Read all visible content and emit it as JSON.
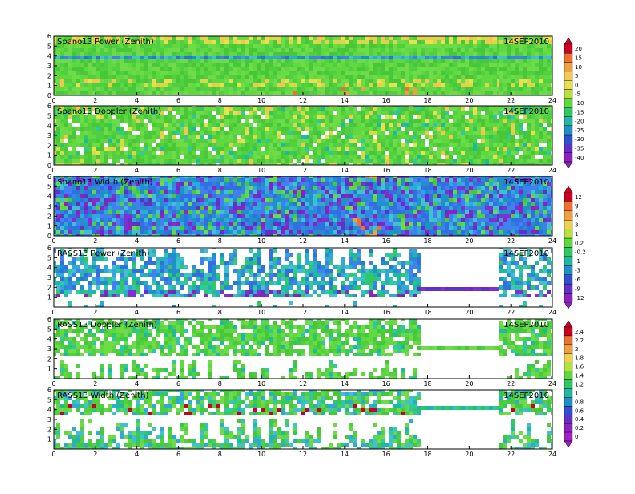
{
  "chart_data": [
    {
      "type": "heatmap",
      "title": "Spano13 Power (Zenith)",
      "date": "14SEP2010",
      "xlim": [
        0,
        24
      ],
      "ylim": [
        0,
        6
      ],
      "xticks": [
        0,
        2,
        4,
        6,
        8,
        10,
        12,
        14,
        16,
        18,
        20,
        22,
        24
      ],
      "yticks": [
        0,
        1,
        2,
        3,
        4,
        5,
        6
      ],
      "data_extent_hours": [
        0,
        24
      ],
      "colorbar_group": 0
    },
    {
      "type": "heatmap",
      "title": "Spano13 Doppler (Zenith)",
      "date": "14SEP2010",
      "xlim": [
        0,
        24
      ],
      "ylim": [
        0,
        6
      ],
      "xticks": [
        0,
        2,
        4,
        6,
        8,
        10,
        12,
        14,
        16,
        18,
        20,
        22,
        24
      ],
      "yticks": [
        0,
        1,
        2,
        3,
        4,
        5,
        6
      ],
      "data_extent_hours": [
        0,
        24
      ],
      "colorbar_group": 0
    },
    {
      "type": "heatmap",
      "title": "Spano13 Width (Zenith)",
      "date": "14SEP2010",
      "xlim": [
        0,
        24
      ],
      "ylim": [
        0,
        6
      ],
      "xticks": [
        0,
        2,
        4,
        6,
        8,
        10,
        12,
        14,
        16,
        18,
        20,
        22,
        24
      ],
      "yticks": [
        0,
        1,
        2,
        3,
        4,
        5,
        6
      ],
      "data_extent_hours": [
        0,
        24
      ],
      "colorbar_group": 1
    },
    {
      "type": "heatmap",
      "title": "RASS13 Power (Zenith)",
      "date": "14SEP2010",
      "xlim": [
        0,
        24
      ],
      "ylim": [
        0,
        6
      ],
      "xticks": [
        0,
        2,
        4,
        6,
        8,
        10,
        12,
        14,
        16,
        18,
        20,
        22,
        24
      ],
      "yticks": [
        1,
        2,
        3,
        4,
        5,
        6
      ],
      "data_extent_hours": [
        0,
        20.1
      ],
      "colorbar_group": 1
    },
    {
      "type": "heatmap",
      "title": "RASS13 Doppler (Zenith)",
      "date": "14SEP2010",
      "xlim": [
        0,
        24
      ],
      "ylim": [
        0,
        6
      ],
      "xticks": [
        0,
        2,
        4,
        6,
        8,
        10,
        12,
        14,
        16,
        18,
        20,
        22,
        24
      ],
      "yticks": [
        1,
        2,
        3,
        4,
        5,
        6
      ],
      "data_extent_hours": [
        0,
        20.1
      ],
      "colorbar_group": 2
    },
    {
      "type": "heatmap",
      "title": "RASS13 Width (Zenith)",
      "date": "14SEP2010",
      "xlim": [
        0,
        24
      ],
      "ylim": [
        0,
        6
      ],
      "xticks": [
        0,
        2,
        4,
        6,
        8,
        10,
        12,
        14,
        16,
        18,
        20,
        22,
        24
      ],
      "yticks": [
        1,
        2,
        3,
        4,
        5,
        6
      ],
      "data_extent_hours": [
        0,
        20.1
      ],
      "colorbar_group": 2
    }
  ],
  "colorbars": [
    {
      "labels": [
        "20",
        "15",
        "10",
        "5",
        "0",
        "-5",
        "-10",
        "-15",
        "-20",
        "-25",
        "-30",
        "-35",
        "-40"
      ],
      "colors": [
        "#cc0022",
        "#f07030",
        "#f0a040",
        "#f5c85a",
        "#e8e050",
        "#b8e040",
        "#60d840",
        "#30c860",
        "#20b8a0",
        "#2090c8",
        "#3050d0",
        "#6030c8",
        "#9020c0"
      ]
    },
    {
      "labels": [
        "12",
        "9",
        "6",
        "3",
        "1",
        "0.2",
        "-0.2",
        "-1",
        "-3",
        "-6",
        "-9",
        "-12"
      ],
      "colors": [
        "#cc0022",
        "#f07030",
        "#f0a040",
        "#f0d050",
        "#b8e040",
        "#60d840",
        "#30c860",
        "#20b8a0",
        "#2090c8",
        "#3050d0",
        "#6030c8",
        "#9020c0"
      ]
    },
    {
      "labels": [
        "2.4",
        "2.2",
        "2",
        "1.8",
        "1.6",
        "1.4",
        "1.2",
        "1",
        "0.8",
        "0.6",
        "0.4",
        "0.2",
        "0"
      ],
      "colors": [
        "#cc0022",
        "#f07030",
        "#f0a040",
        "#f0d050",
        "#b8e040",
        "#60d840",
        "#30c860",
        "#20b8a0",
        "#2090c8",
        "#3050d0",
        "#6030c8",
        "#9020c0",
        "#a020c8"
      ]
    }
  ]
}
